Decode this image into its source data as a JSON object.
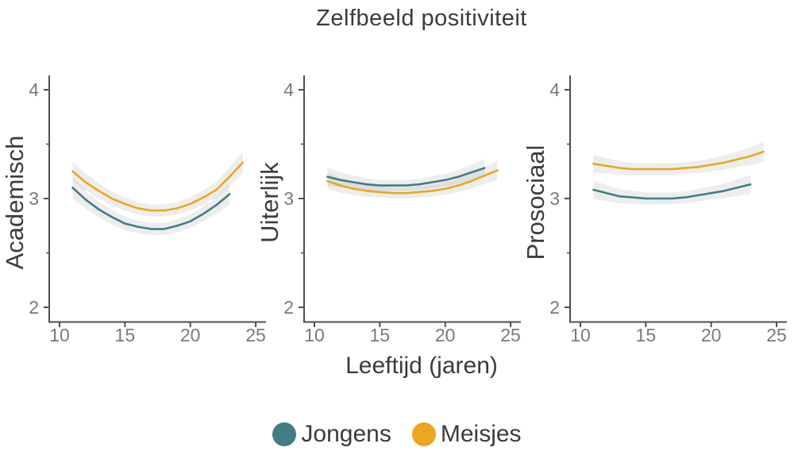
{
  "figure": {
    "title": "Zelfbeeld positiviteit",
    "x_axis_label": "Leeftijd (jaren)",
    "legend": [
      {
        "label": "Jongens",
        "color": "#407D86"
      },
      {
        "label": "Meisjes",
        "color": "#EAA71F"
      }
    ]
  },
  "chart_data": {
    "type": "line",
    "title": "Zelfbeeld positiviteit",
    "xlabel": "Leeftijd (jaren)",
    "ylabel_facets": [
      "Academisch",
      "Uiterlijk",
      "Prosociaal"
    ],
    "x_ticks": [
      10,
      15,
      20,
      25
    ],
    "y_ticks": [
      2,
      3,
      4
    ],
    "y_minor_ticks": [
      2.5,
      3.5
    ],
    "xlim": [
      9.2,
      25.8
    ],
    "ylim": [
      1.87,
      4.13
    ],
    "grid": false,
    "legend_position": "bottom",
    "axis_color": "#4f4f4f",
    "tick_label_color": "#7a7a7a",
    "facet_label_color": "#3b3b3b",
    "ribbon_color": "#8f8f8f",
    "ribbon_opacity": 0.16,
    "panels": [
      {
        "label": "Academisch",
        "overlap_seam": true,
        "series": [
          {
            "name": "Jongens",
            "color": "#407D86",
            "points": [
              [
                11,
                3.1,
                0.1
              ],
              [
                12,
                2.99,
                0.085
              ],
              [
                13,
                2.9,
                0.075
              ],
              [
                14,
                2.83,
                0.068
              ],
              [
                15,
                2.77,
                0.062
              ],
              [
                16,
                2.74,
                0.058
              ],
              [
                17,
                2.72,
                0.056
              ],
              [
                18,
                2.72,
                0.056
              ],
              [
                19,
                2.75,
                0.058
              ],
              [
                20,
                2.79,
                0.062
              ],
              [
                21,
                2.86,
                0.07
              ],
              [
                22,
                2.94,
                0.08
              ],
              [
                23,
                3.04,
                0.095
              ]
            ]
          },
          {
            "name": "Meisjes",
            "color": "#EAA71F",
            "points": [
              [
                11,
                3.25,
                0.09
              ],
              [
                12,
                3.15,
                0.08
              ],
              [
                13,
                3.07,
                0.07
              ],
              [
                14,
                3.0,
                0.065
              ],
              [
                15,
                2.95,
                0.06
              ],
              [
                16,
                2.91,
                0.056
              ],
              [
                17,
                2.89,
                0.055
              ],
              [
                18,
                2.89,
                0.055
              ],
              [
                19,
                2.91,
                0.056
              ],
              [
                20,
                2.95,
                0.06
              ],
              [
                21,
                3.01,
                0.066
              ],
              [
                22,
                3.08,
                0.074
              ],
              [
                23,
                3.2,
                0.085
              ],
              [
                24,
                3.33,
                0.1
              ]
            ]
          }
        ]
      },
      {
        "label": "Uiterlijk",
        "overlap_seam": false,
        "series": [
          {
            "name": "Jongens",
            "color": "#407D86",
            "points": [
              [
                11,
                3.2,
                0.08
              ],
              [
                12,
                3.17,
                0.07
              ],
              [
                13,
                3.15,
                0.062
              ],
              [
                14,
                3.13,
                0.056
              ],
              [
                15,
                3.12,
                0.052
              ],
              [
                16,
                3.12,
                0.05
              ],
              [
                17,
                3.12,
                0.05
              ],
              [
                18,
                3.13,
                0.051
              ],
              [
                19,
                3.15,
                0.053
              ],
              [
                20,
                3.17,
                0.057
              ],
              [
                21,
                3.2,
                0.063
              ],
              [
                22,
                3.24,
                0.072
              ],
              [
                23,
                3.28,
                0.082
              ]
            ]
          },
          {
            "name": "Meisjes",
            "color": "#EAA71F",
            "points": [
              [
                11,
                3.16,
                0.075
              ],
              [
                12,
                3.12,
                0.066
              ],
              [
                13,
                3.09,
                0.059
              ],
              [
                14,
                3.07,
                0.054
              ],
              [
                15,
                3.06,
                0.051
              ],
              [
                16,
                3.05,
                0.05
              ],
              [
                17,
                3.05,
                0.05
              ],
              [
                18,
                3.06,
                0.051
              ],
              [
                19,
                3.07,
                0.053
              ],
              [
                20,
                3.09,
                0.056
              ],
              [
                21,
                3.12,
                0.061
              ],
              [
                22,
                3.16,
                0.068
              ],
              [
                23,
                3.21,
                0.077
              ],
              [
                24,
                3.26,
                0.088
              ]
            ]
          }
        ]
      },
      {
        "label": "Prosociaal",
        "overlap_seam": false,
        "series": [
          {
            "name": "Jongens",
            "color": "#407D86",
            "points": [
              [
                11,
                3.08,
                0.085
              ],
              [
                12,
                3.05,
                0.075
              ],
              [
                13,
                3.02,
                0.066
              ],
              [
                14,
                3.01,
                0.06
              ],
              [
                15,
                3.0,
                0.056
              ],
              [
                16,
                3.0,
                0.054
              ],
              [
                17,
                3.0,
                0.054
              ],
              [
                18,
                3.01,
                0.055
              ],
              [
                19,
                3.03,
                0.057
              ],
              [
                20,
                3.05,
                0.061
              ],
              [
                21,
                3.07,
                0.067
              ],
              [
                22,
                3.1,
                0.076
              ],
              [
                23,
                3.13,
                0.086
              ]
            ]
          },
          {
            "name": "Meisjes",
            "color": "#EAA71F",
            "points": [
              [
                11,
                3.32,
                0.08
              ],
              [
                12,
                3.3,
                0.07
              ],
              [
                13,
                3.28,
                0.063
              ],
              [
                14,
                3.27,
                0.057
              ],
              [
                15,
                3.27,
                0.054
              ],
              [
                16,
                3.27,
                0.053
              ],
              [
                17,
                3.27,
                0.053
              ],
              [
                18,
                3.28,
                0.054
              ],
              [
                19,
                3.29,
                0.056
              ],
              [
                20,
                3.31,
                0.06
              ],
              [
                21,
                3.33,
                0.065
              ],
              [
                22,
                3.36,
                0.072
              ],
              [
                23,
                3.39,
                0.081
              ],
              [
                24,
                3.43,
                0.092
              ]
            ]
          }
        ]
      }
    ]
  }
}
